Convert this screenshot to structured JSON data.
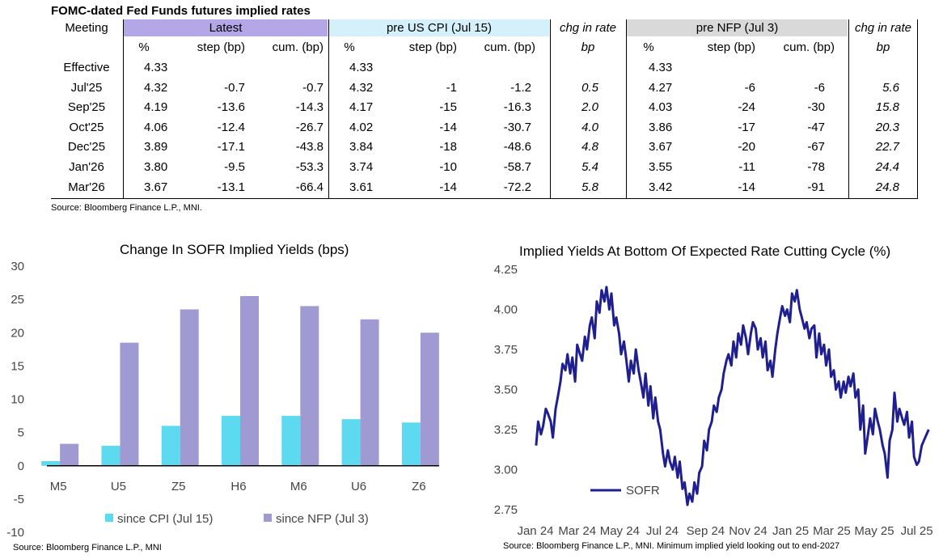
{
  "table": {
    "title": "FOMC-dated Fed Funds futures implied rates",
    "meeting_header": "Meeting",
    "groups": [
      {
        "label": "Latest",
        "color": "#b4a7e8",
        "subheaders": [
          "%",
          "step (bp)",
          "cum. (bp)"
        ]
      },
      {
        "label": "pre US CPI (Jul 15)",
        "color": "#d4f1fb",
        "subheaders": [
          "%",
          "step (bp)",
          "cum. (bp)"
        ]
      },
      {
        "label": "pre NFP (Jul 3)",
        "color": "#d9d9d9",
        "subheaders": [
          "%",
          "step (bp)",
          "cum. (bp)"
        ]
      }
    ],
    "chg_header_1": "chg in rate",
    "chg_sub_1": "bp",
    "chg_header_2": "chg in rate",
    "chg_sub_2": "bp",
    "rows": [
      {
        "meeting": "Effective",
        "latest": [
          "4.33",
          "",
          ""
        ],
        "cpi": [
          "4.33",
          "",
          ""
        ],
        "chg1": "",
        "nfp": [
          "4.33",
          "",
          ""
        ],
        "chg2": ""
      },
      {
        "meeting": "Jul'25",
        "latest": [
          "4.32",
          "-0.7",
          "-0.7"
        ],
        "cpi": [
          "4.32",
          "-1",
          "-1.2"
        ],
        "chg1": "0.5",
        "nfp": [
          "4.27",
          "-6",
          "-6"
        ],
        "chg2": "5.6"
      },
      {
        "meeting": "Sep'25",
        "latest": [
          "4.19",
          "-13.6",
          "-14.3"
        ],
        "cpi": [
          "4.17",
          "-15",
          "-16.3"
        ],
        "chg1": "2.0",
        "nfp": [
          "4.03",
          "-24",
          "-30"
        ],
        "chg2": "15.8"
      },
      {
        "meeting": "Oct'25",
        "latest": [
          "4.06",
          "-12.4",
          "-26.7"
        ],
        "cpi": [
          "4.02",
          "-14",
          "-30.7"
        ],
        "chg1": "4.0",
        "nfp": [
          "3.86",
          "-17",
          "-47"
        ],
        "chg2": "20.3"
      },
      {
        "meeting": "Dec'25",
        "latest": [
          "3.89",
          "-17.1",
          "-43.8"
        ],
        "cpi": [
          "3.84",
          "-18",
          "-48.6"
        ],
        "chg1": "4.8",
        "nfp": [
          "3.67",
          "-20",
          "-67"
        ],
        "chg2": "22.7"
      },
      {
        "meeting": "Jan'26",
        "latest": [
          "3.80",
          "-9.5",
          "-53.3"
        ],
        "cpi": [
          "3.74",
          "-10",
          "-58.7"
        ],
        "chg1": "5.4",
        "nfp": [
          "3.55",
          "-11",
          "-78"
        ],
        "chg2": "24.4"
      },
      {
        "meeting": "Mar'26",
        "latest": [
          "3.67",
          "-13.1",
          "-66.4"
        ],
        "cpi": [
          "3.61",
          "-14",
          "-72.2"
        ],
        "chg1": "5.8",
        "nfp": [
          "3.42",
          "-14",
          "-91"
        ],
        "chg2": "24.8"
      }
    ],
    "source": "Source: Bloomberg Finance L.P., MNI."
  },
  "chart_data": [
    {
      "type": "bar",
      "title": "Change In SOFR Implied Yields (bps)",
      "categories": [
        "M5",
        "U5",
        "Z5",
        "H6",
        "M6",
        "U6",
        "Z6"
      ],
      "series": [
        {
          "name": "since CPI (Jul 15)",
          "color": "#5dd9f0",
          "values": [
            0.7,
            3.0,
            6.0,
            7.5,
            7.5,
            7.0,
            6.5
          ]
        },
        {
          "name": "since NFP (Jul 3)",
          "color": "#a09ad2",
          "values": [
            3.3,
            18.5,
            23.5,
            25.5,
            24.0,
            22.0,
            20.0
          ]
        }
      ],
      "ylim": [
        -10,
        30
      ],
      "yticks": [
        "-10",
        "-5",
        "0",
        "5",
        "10",
        "15",
        "20",
        "25",
        "30"
      ],
      "legend": "bottom",
      "source": "Source: Bloomberg Finance L.P., MNI"
    },
    {
      "type": "line",
      "title": "Implied Yields At Bottom Of Expected Rate Cutting Cycle (%)",
      "ylim": [
        2.75,
        4.25
      ],
      "yticks": [
        "2.75",
        "3.00",
        "3.25",
        "3.50",
        "3.75",
        "4.00",
        "4.25"
      ],
      "xticks": [
        "Jan 24",
        "Mar 24",
        "May 24",
        "Jul 24",
        "Sep 24",
        "Nov 24",
        "Jan 25",
        "Mar 25",
        "May 25",
        "Jul 25"
      ],
      "x_range": [
        "2024-01",
        "2025-07-20"
      ],
      "legend": "bottom-left",
      "series": [
        {
          "name": "SOFR",
          "color": "#1f1f8f",
          "x": [
            "2024-01-02",
            "2024-01-05",
            "2024-01-09",
            "2024-01-12",
            "2024-01-16",
            "2024-01-19",
            "2024-01-23",
            "2024-01-26",
            "2024-01-30",
            "2024-02-02",
            "2024-02-06",
            "2024-02-09",
            "2024-02-13",
            "2024-02-16",
            "2024-02-20",
            "2024-02-23",
            "2024-02-27",
            "2024-03-01",
            "2024-03-05",
            "2024-03-08",
            "2024-03-12",
            "2024-03-15",
            "2024-03-19",
            "2024-03-22",
            "2024-03-26",
            "2024-03-29",
            "2024-04-02",
            "2024-04-05",
            "2024-04-09",
            "2024-04-12",
            "2024-04-16",
            "2024-04-19",
            "2024-04-23",
            "2024-04-26",
            "2024-04-30",
            "2024-05-03",
            "2024-05-07",
            "2024-05-10",
            "2024-05-14",
            "2024-05-17",
            "2024-05-21",
            "2024-05-24",
            "2024-05-28",
            "2024-05-31",
            "2024-06-04",
            "2024-06-07",
            "2024-06-11",
            "2024-06-14",
            "2024-06-18",
            "2024-06-21",
            "2024-06-25",
            "2024-06-28",
            "2024-07-02",
            "2024-07-05",
            "2024-07-09",
            "2024-07-12",
            "2024-07-16",
            "2024-07-19",
            "2024-07-23",
            "2024-07-26",
            "2024-07-30",
            "2024-08-02",
            "2024-08-06",
            "2024-08-09",
            "2024-08-13",
            "2024-08-16",
            "2024-08-20",
            "2024-08-23",
            "2024-08-27",
            "2024-08-30",
            "2024-09-03",
            "2024-09-06",
            "2024-09-10",
            "2024-09-13",
            "2024-09-17",
            "2024-09-20",
            "2024-09-24",
            "2024-09-27",
            "2024-10-01",
            "2024-10-04",
            "2024-10-08",
            "2024-10-11",
            "2024-10-15",
            "2024-10-18",
            "2024-10-22",
            "2024-10-25",
            "2024-10-29",
            "2024-11-01",
            "2024-11-05",
            "2024-11-08",
            "2024-11-12",
            "2024-11-15",
            "2024-11-19",
            "2024-11-22",
            "2024-11-26",
            "2024-11-29",
            "2024-12-03",
            "2024-12-06",
            "2024-12-10",
            "2024-12-13",
            "2024-12-17",
            "2024-12-20",
            "2024-12-24",
            "2024-12-27",
            "2024-12-31",
            "2025-01-03",
            "2025-01-07",
            "2025-01-10",
            "2025-01-14",
            "2025-01-17",
            "2025-01-21",
            "2025-01-24",
            "2025-01-28",
            "2025-01-31",
            "2025-02-04",
            "2025-02-07",
            "2025-02-11",
            "2025-02-14",
            "2025-02-18",
            "2025-02-21",
            "2025-02-25",
            "2025-02-28",
            "2025-03-04",
            "2025-03-07",
            "2025-03-11",
            "2025-03-14",
            "2025-03-18",
            "2025-03-21",
            "2025-03-25",
            "2025-03-28",
            "2025-04-01",
            "2025-04-04",
            "2025-04-08",
            "2025-04-11",
            "2025-04-15",
            "2025-04-18",
            "2025-04-22",
            "2025-04-25",
            "2025-04-29",
            "2025-05-02",
            "2025-05-06",
            "2025-05-09",
            "2025-05-13",
            "2025-05-16",
            "2025-05-20",
            "2025-05-23",
            "2025-05-27",
            "2025-05-30",
            "2025-06-03",
            "2025-06-06",
            "2025-06-10",
            "2025-06-13",
            "2025-06-17",
            "2025-06-20",
            "2025-06-24",
            "2025-06-27",
            "2025-07-01",
            "2025-07-04",
            "2025-07-08",
            "2025-07-11",
            "2025-07-15",
            "2025-07-18"
          ],
          "y": [
            3.15,
            3.3,
            3.22,
            3.27,
            3.38,
            3.35,
            3.3,
            3.2,
            3.38,
            3.45,
            3.55,
            3.66,
            3.62,
            3.72,
            3.6,
            3.7,
            3.55,
            3.78,
            3.72,
            3.68,
            3.83,
            3.75,
            3.9,
            3.95,
            3.82,
            4.05,
            3.98,
            4.12,
            4.05,
            4.14,
            4.0,
            4.1,
            3.9,
            3.95,
            3.85,
            3.72,
            3.8,
            3.7,
            3.55,
            3.68,
            3.6,
            3.75,
            3.62,
            3.55,
            3.45,
            3.6,
            3.4,
            3.52,
            3.32,
            3.45,
            3.3,
            3.25,
            3.1,
            3.02,
            3.12,
            3.05,
            3.0,
            3.08,
            2.95,
            3.05,
            2.88,
            2.92,
            2.78,
            2.85,
            2.8,
            2.92,
            2.85,
            2.98,
            3.02,
            3.18,
            3.12,
            3.25,
            3.3,
            3.4,
            3.36,
            3.45,
            3.5,
            3.6,
            3.68,
            3.72,
            3.65,
            3.8,
            3.7,
            3.85,
            3.78,
            3.9,
            3.82,
            3.72,
            3.85,
            3.92,
            3.88,
            3.75,
            3.82,
            3.7,
            3.8,
            3.62,
            3.68,
            3.58,
            3.75,
            3.85,
            3.95,
            4.02,
            3.96,
            4.0,
            3.92,
            4.1,
            4.05,
            4.12,
            4.0,
            3.95,
            3.88,
            3.92,
            3.82,
            3.88,
            3.9,
            3.7,
            3.85,
            3.72,
            3.78,
            3.65,
            3.75,
            3.58,
            3.62,
            3.5,
            3.55,
            3.45,
            3.55,
            3.48,
            3.58,
            3.52,
            3.6,
            3.45,
            3.5,
            3.25,
            3.4,
            3.1,
            3.22,
            3.32,
            3.22,
            3.38,
            3.3,
            3.25,
            3.15,
            3.1,
            2.95,
            3.18,
            3.25,
            3.48,
            3.3,
            3.38,
            3.32,
            3.28,
            3.36,
            3.2,
            3.3,
            3.08,
            3.03,
            3.05,
            3.15,
            3.18,
            3.22,
            3.25
          ]
        }
      ],
      "source": "Source: Bloomberg Finance L.P., MNI. Minimum implied yield looking out to end-2027"
    }
  ]
}
